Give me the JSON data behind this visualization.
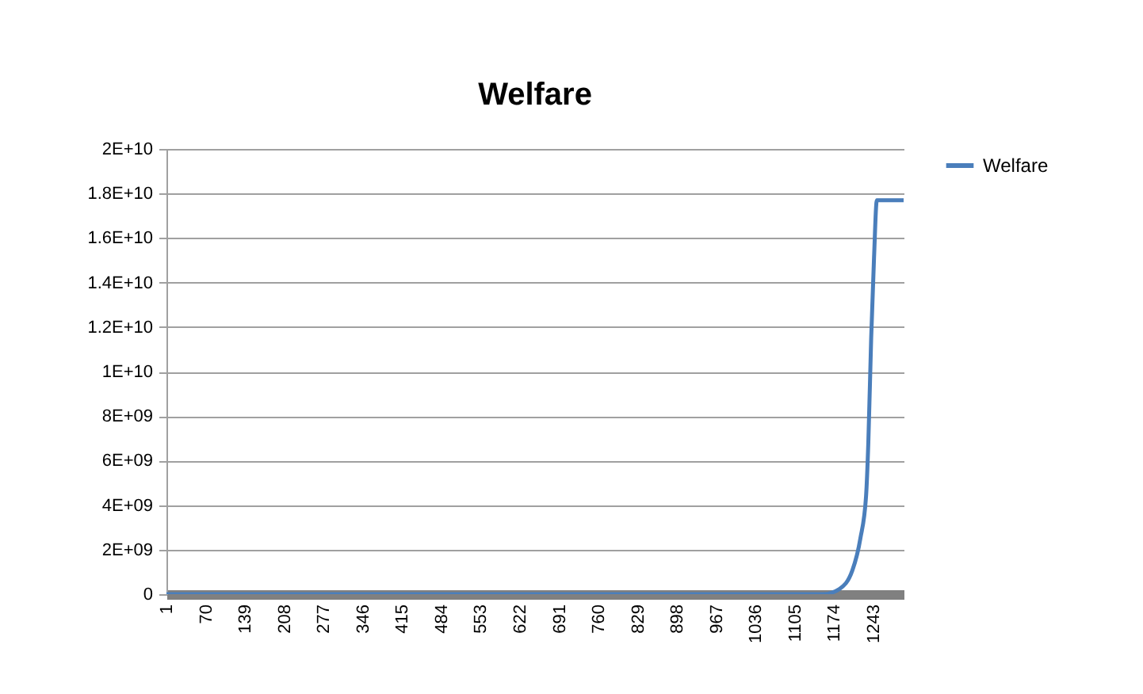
{
  "chart_data": {
    "type": "line",
    "title": "Welfare",
    "x": [
      1,
      1155,
      1183,
      1206,
      1220,
      1230,
      1234,
      1239,
      1244,
      1249,
      1296
    ],
    "series": [
      {
        "name": "Welfare",
        "color": "#4a7ebb",
        "values": [
          0,
          0,
          230000000,
          1070000000,
          2500000000,
          4400000000,
          6800000000,
          11500000000,
          15100000000,
          17700000000,
          17700000000
        ]
      }
    ],
    "xlim": [
      1,
      1296
    ],
    "xticks": [
      1,
      70,
      139,
      208,
      277,
      346,
      415,
      484,
      553,
      622,
      691,
      760,
      829,
      898,
      967,
      1036,
      1105,
      1174,
      1243
    ],
    "ylim": [
      0,
      20000000000
    ],
    "yticks": [
      0,
      {
        "value": 2000000000,
        "label": "2E+09"
      },
      {
        "value": 4000000000,
        "label": "4E+09"
      },
      {
        "value": 6000000000,
        "label": "6E+09"
      },
      {
        "value": 8000000000,
        "label": "8E+09"
      },
      {
        "value": 10000000000,
        "label": "1E+10"
      },
      {
        "value": 12000000000,
        "label": "1.2E+10"
      },
      {
        "value": 14000000000,
        "label": "1.4E+10"
      },
      {
        "value": 16000000000,
        "label": "1.6E+10"
      },
      {
        "value": 18000000000,
        "label": "1.8E+10"
      },
      {
        "value": 20000000000,
        "label": "2E+10"
      }
    ],
    "grid": "y",
    "legend": "right",
    "marker": "none",
    "line_style": "solid"
  }
}
